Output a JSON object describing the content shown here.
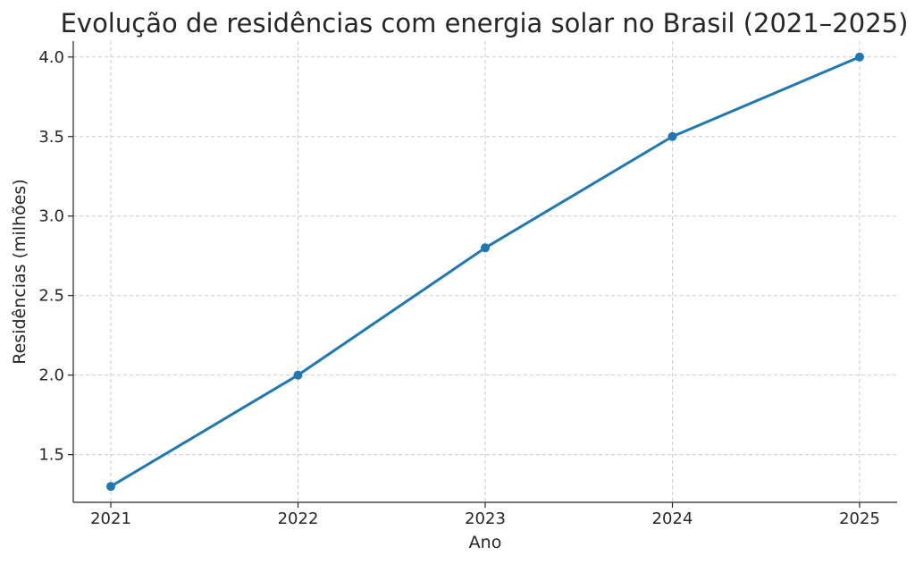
{
  "chart_data": {
    "type": "line",
    "title": "Evolução de residências com energia solar no Brasil (2021–2025)",
    "xlabel": "Ano",
    "ylabel": "Residências (milhões)",
    "x": [
      "2021",
      "2022",
      "2023",
      "2024",
      "2025"
    ],
    "series": [
      {
        "values": [
          1.3,
          2.0,
          2.8,
          3.5,
          4.0
        ],
        "color": "#1f77b4",
        "marker": "circle"
      }
    ],
    "ylim": [
      1.2,
      4.1
    ],
    "yticks": [
      "1.5",
      "2.0",
      "2.5",
      "3.0",
      "3.5",
      "4.0"
    ],
    "grid": true,
    "grid_style": "dashed"
  }
}
